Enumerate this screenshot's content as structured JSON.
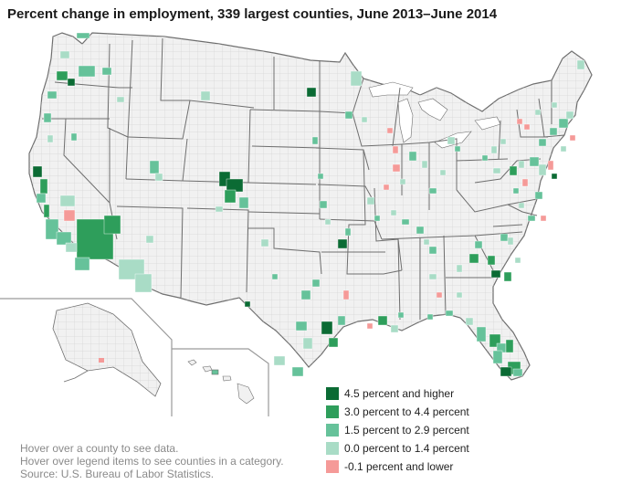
{
  "title": "Percent change in employment, 339 largest counties, June 2013–June 2014",
  "legend": [
    {
      "label": "4.5 percent and higher",
      "color": "#0b6b34"
    },
    {
      "label": "3.0 percent to 4.4 percent",
      "color": "#2e9e5b"
    },
    {
      "label": "1.5 percent to 2.9 percent",
      "color": "#66c29a"
    },
    {
      "label": "0.0 percent to 1.4 percent",
      "color": "#a9dcc6"
    },
    {
      "label": "-0.1 percent and lower",
      "color": "#f59a98"
    }
  ],
  "notes": {
    "hover_county": "Hover over a county to see data.",
    "hover_legend": "Hover over legend items to see counties in a category.",
    "source": "Source: U.S. Bureau of Labor Statistics."
  },
  "colors": {
    "land": "#f1f1f1",
    "state_border": "#6e6e6e",
    "county_border": "#c9c9c9",
    "inset_line": "#9a9a9a"
  }
}
